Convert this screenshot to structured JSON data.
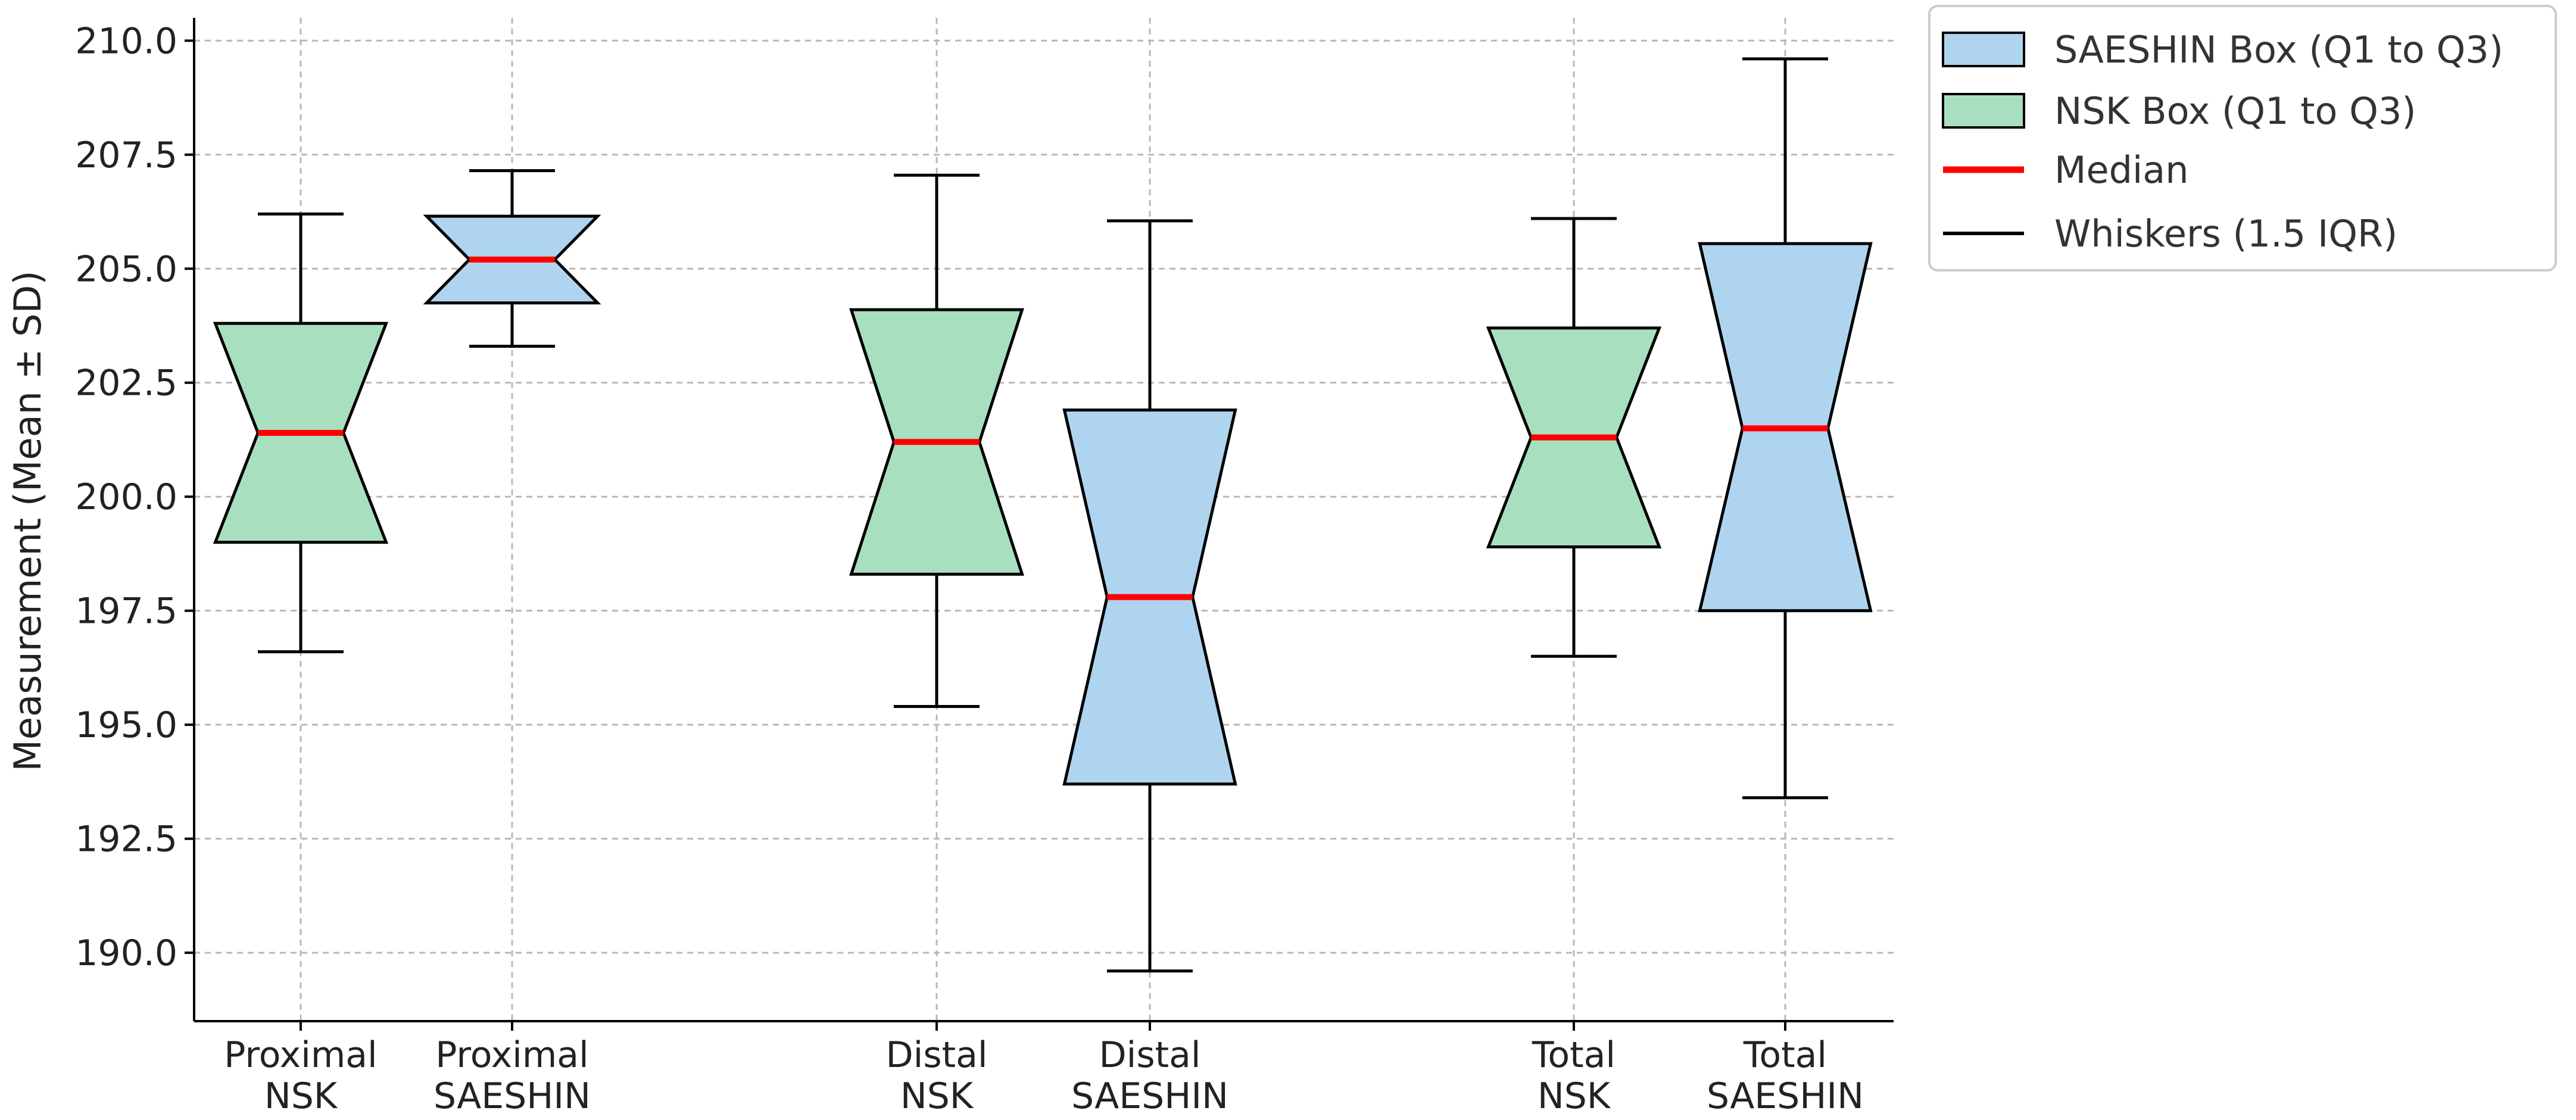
{
  "chart_data": {
    "type": "box",
    "title": "",
    "xlabel": "",
    "ylabel": "Measurement (Mean ± SD)",
    "ylim": [
      188.5,
      210.5
    ],
    "yticks": [
      190.0,
      192.5,
      195.0,
      197.5,
      200.0,
      202.5,
      205.0,
      207.5,
      210.0
    ],
    "ytick_labels": [
      "190.0",
      "192.5",
      "195.0",
      "197.5",
      "200.0",
      "202.5",
      "205.0",
      "207.5",
      "210.0"
    ],
    "grid": true,
    "legend_position": "outside-top-right",
    "boxes": [
      {
        "label_line1": "Proximal",
        "label_line2": "NSK",
        "group": "NSK",
        "whisker_low": 196.6,
        "q1": 199.0,
        "median": 201.4,
        "q3": 203.8,
        "whisker_high": 206.2
      },
      {
        "label_line1": "Proximal",
        "label_line2": "SAESHIN",
        "group": "SAESHIN",
        "whisker_low": 203.3,
        "q1": 204.25,
        "median": 205.2,
        "q3": 206.15,
        "whisker_high": 207.15
      },
      {
        "label_line1": "Distal",
        "label_line2": "NSK",
        "group": "NSK",
        "whisker_low": 195.4,
        "q1": 198.3,
        "median": 201.2,
        "q3": 204.1,
        "whisker_high": 207.05
      },
      {
        "label_line1": "Distal",
        "label_line2": "SAESHIN",
        "group": "SAESHIN",
        "whisker_low": 189.6,
        "q1": 193.7,
        "median": 197.8,
        "q3": 201.9,
        "whisker_high": 206.05
      },
      {
        "label_line1": "Total",
        "label_line2": "NSK",
        "group": "NSK",
        "whisker_low": 196.5,
        "q1": 198.9,
        "median": 201.3,
        "q3": 203.7,
        "whisker_high": 206.1
      },
      {
        "label_line1": "Total",
        "label_line2": "SAESHIN",
        "group": "SAESHIN",
        "whisker_low": 193.4,
        "q1": 197.5,
        "median": 201.5,
        "q3": 205.55,
        "whisker_high": 209.6
      }
    ],
    "legend": [
      {
        "label": "SAESHIN Box (Q1 to Q3)",
        "kind": "box",
        "color": "#aed4f0"
      },
      {
        "label": "NSK Box (Q1 to Q3)",
        "kind": "box",
        "color": "#a8e0bf"
      },
      {
        "label": "Median",
        "kind": "line",
        "color": "#ff0000"
      },
      {
        "label": "Whiskers (1.5 IQR)",
        "kind": "line",
        "color": "#000000"
      }
    ],
    "colors": {
      "nsk_fill": "#a8e0bf",
      "saeshin_fill": "#aed4f0",
      "median": "#ff0000",
      "edge": "#000000",
      "grid": "#b8b8b8"
    }
  }
}
